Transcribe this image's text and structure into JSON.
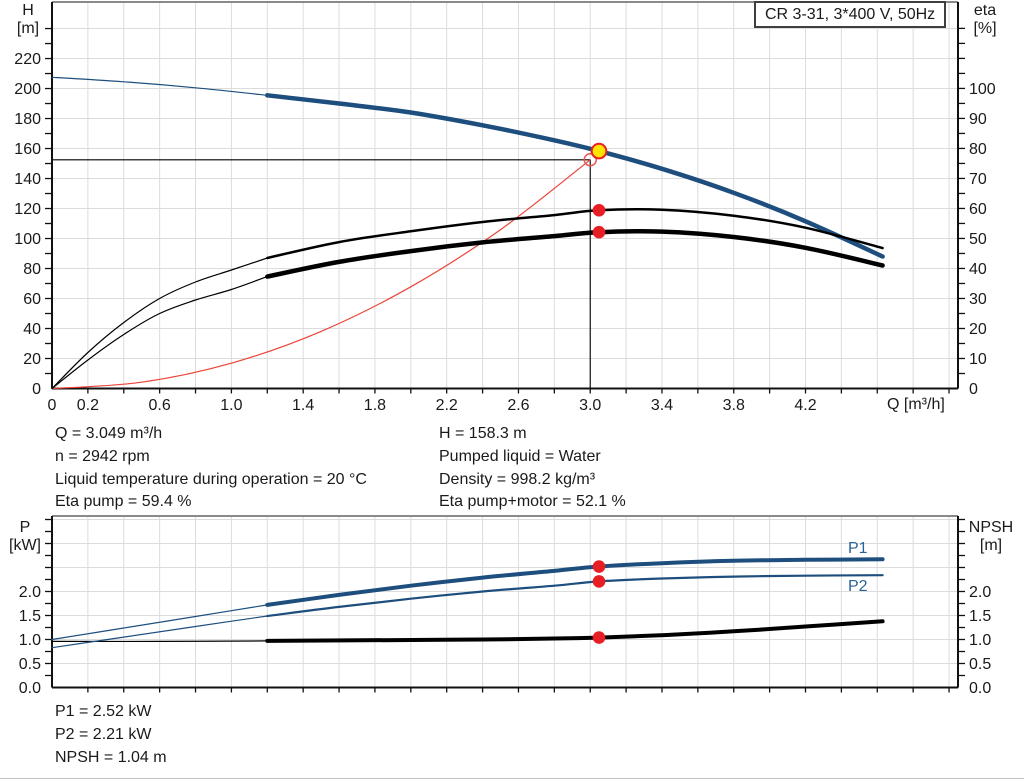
{
  "colors": {
    "grid": "#dcdcdc",
    "border_gray": "#8a8a8a",
    "axis": "#111111",
    "blue": "#1d4e7e",
    "black": "#000000",
    "red": "#ec4338",
    "marker_red": "#e81e25",
    "marker_red_light": "#ef5350",
    "marker_yellow": "#ffe400",
    "label_blue": "#2a6496",
    "text": "#1a1a1a"
  },
  "title_box": "CR 3-31, 3*400 V, 50Hz",
  "info_left": [
    "Q = 3.049 m³/h",
    "n = 2942 rpm",
    "Liquid temperature during operation = 20 °C",
    "Eta pump = 59.4 %"
  ],
  "info_right": [
    "H = 158.3 m",
    "Pumped liquid = Water",
    "Density = 998.2 kg/m³",
    "Eta pump+motor = 52.1 %"
  ],
  "results": [
    "P1 = 2.52 kW",
    "P2 = 2.21 kW",
    "NPSH = 1.04 m"
  ],
  "chart_data": [
    {
      "type": "line",
      "id": "hq-eta-chart",
      "title": "CR 3-31, 3*400 V, 50Hz",
      "xlabel": "Q [m³/h]",
      "ylabel_left_sym": "H",
      "ylabel_left_unit": "[m]",
      "ylabel_right_sym": "eta",
      "ylabel_right_unit": "[%]",
      "xlim": [
        0,
        5.05
      ],
      "ylim_left": [
        0,
        257.7
      ],
      "ylim_right": [
        0,
        128.8
      ],
      "grid": true,
      "grid_step_left": 20,
      "x_tick_step": 0.2,
      "x_tick_max": 5.0,
      "x_labels": [
        [
          0,
          "0"
        ],
        [
          0.2,
          "0.2"
        ],
        [
          0.6,
          "0.6"
        ],
        [
          1.0,
          "1.0"
        ],
        [
          1.4,
          "1.4"
        ],
        [
          1.8,
          "1.8"
        ],
        [
          2.2,
          "2.2"
        ],
        [
          2.6,
          "2.6"
        ],
        [
          3.0,
          "3.0"
        ],
        [
          3.4,
          "3.4"
        ],
        [
          3.8,
          "3.8"
        ],
        [
          4.2,
          "4.2"
        ]
      ],
      "left_tick_step": 10,
      "left_tick_max": 240,
      "y_left_labels": [
        [
          0,
          "0"
        ],
        [
          20,
          "20"
        ],
        [
          40,
          "40"
        ],
        [
          60,
          "60"
        ],
        [
          80,
          "80"
        ],
        [
          100,
          "100"
        ],
        [
          120,
          "120"
        ],
        [
          140,
          "140"
        ],
        [
          160,
          "160"
        ],
        [
          180,
          "180"
        ],
        [
          200,
          "200"
        ],
        [
          220,
          "220"
        ]
      ],
      "right_tick_step": 5,
      "right_tick_max": 120,
      "y_right_labels": [
        [
          0,
          "0"
        ],
        [
          10,
          "10"
        ],
        [
          20,
          "20"
        ],
        [
          30,
          "30"
        ],
        [
          40,
          "40"
        ],
        [
          50,
          "50"
        ],
        [
          60,
          "60"
        ],
        [
          70,
          "70"
        ],
        [
          80,
          "80"
        ],
        [
          90,
          "90"
        ],
        [
          100,
          "100"
        ]
      ],
      "duty_point": {
        "q": 3.0,
        "value": 152.5
      },
      "series": [
        {
          "name": "system-curve",
          "color": "red",
          "width": 1.2,
          "axis": "left",
          "points": [
            [
              0,
              0
            ],
            [
              0.5,
              4.2
            ],
            [
              1.0,
              16.9
            ],
            [
              1.5,
              38.1
            ],
            [
              2.0,
              67.8
            ],
            [
              2.5,
              105.9
            ],
            [
              3.0,
              152.5
            ]
          ]
        },
        {
          "name": "head-curve-thin",
          "color": "blue",
          "width": 1.2,
          "axis": "left",
          "points": [
            [
              0,
              207.5
            ],
            [
              0.4,
              204.5
            ],
            [
              0.8,
              200.5
            ],
            [
              1.2,
              195.5
            ]
          ]
        },
        {
          "name": "head-curve",
          "color": "blue",
          "width": 4.5,
          "axis": "left",
          "points": [
            [
              1.2,
              195.5
            ],
            [
              1.6,
              190
            ],
            [
              2.0,
              184
            ],
            [
              2.4,
              175.5
            ],
            [
              2.8,
              165.5
            ],
            [
              3.049,
              158.3
            ],
            [
              3.4,
              146.5
            ],
            [
              3.8,
              130.5
            ],
            [
              4.2,
              111.5
            ],
            [
              4.63,
              88
            ]
          ]
        },
        {
          "name": "eta-pump-thin",
          "color": "black",
          "width": 1.2,
          "axis": "right",
          "points": [
            [
              0,
              0
            ],
            [
              0.2,
              12
            ],
            [
              0.4,
              22
            ],
            [
              0.6,
              30
            ],
            [
              0.8,
              35.5
            ],
            [
              1.0,
              39.5
            ],
            [
              1.2,
              43.5
            ]
          ]
        },
        {
          "name": "eta-pump",
          "color": "black",
          "width": 2.5,
          "axis": "right",
          "points": [
            [
              1.2,
              43.5
            ],
            [
              1.6,
              48.8
            ],
            [
              2.0,
              52.4
            ],
            [
              2.4,
              55.5
            ],
            [
              2.8,
              57.8
            ],
            [
              3.049,
              59.4
            ],
            [
              3.4,
              59.6
            ],
            [
              3.8,
              57.6
            ],
            [
              4.2,
              53.6
            ],
            [
              4.63,
              46.8
            ]
          ]
        },
        {
          "name": "eta-pump-motor-thin",
          "color": "black",
          "width": 1.2,
          "axis": "right",
          "points": [
            [
              0,
              0
            ],
            [
              0.2,
              9.5
            ],
            [
              0.4,
              18
            ],
            [
              0.6,
              25
            ],
            [
              0.8,
              29.5
            ],
            [
              1.0,
              33
            ],
            [
              1.2,
              37.3
            ]
          ]
        },
        {
          "name": "eta-pump-motor",
          "color": "black",
          "width": 4.5,
          "axis": "right",
          "points": [
            [
              1.2,
              37.3
            ],
            [
              1.6,
              42.2
            ],
            [
              2.0,
              45.8
            ],
            [
              2.4,
              48.7
            ],
            [
              2.8,
              50.8
            ],
            [
              3.049,
              52.1
            ],
            [
              3.4,
              52.3
            ],
            [
              3.8,
              50.5
            ],
            [
              4.2,
              46.9
            ],
            [
              4.63,
              41
            ]
          ]
        }
      ],
      "markers": [
        {
          "name": "duty-point-requested",
          "type": "open",
          "axis": "left",
          "q": 3.0,
          "value": 152.5
        },
        {
          "name": "eta-pump-point",
          "type": "dot",
          "axis": "right",
          "q": 3.049,
          "value": 59.4
        },
        {
          "name": "eta-pump-motor-point",
          "type": "dot",
          "axis": "right",
          "q": 3.049,
          "value": 52.1
        },
        {
          "name": "duty-point-actual",
          "type": "target",
          "axis": "left",
          "q": 3.049,
          "value": 158.3
        }
      ]
    },
    {
      "type": "line",
      "id": "power-npsh-chart",
      "xlabel": "",
      "ylabel_left_sym": "P",
      "ylabel_left_unit": "[kW]",
      "ylabel_right_sym": "NPSH",
      "ylabel_right_unit": "[m]",
      "xlim": [
        0,
        5.05
      ],
      "ylim_left": [
        0,
        3.573
      ],
      "ylim_right": [
        0,
        3.573
      ],
      "grid": true,
      "grid_step_left": 0.5,
      "x_tick_step": 0.2,
      "x_tick_max": 5.0,
      "x_labels": [],
      "left_tick_step": 0.25,
      "left_tick_max": 3.5,
      "y_left_labels": [
        [
          0,
          "0.0"
        ],
        [
          0.5,
          "0.5"
        ],
        [
          1,
          "1.0"
        ],
        [
          1.5,
          "1.5"
        ],
        [
          2,
          "2.0"
        ]
      ],
      "right_tick_step": 0.25,
      "right_tick_max": 3.5,
      "y_right_labels": [
        [
          0,
          "0.0"
        ],
        [
          0.5,
          "0.5"
        ],
        [
          1,
          "1.0"
        ],
        [
          1.5,
          "1.5"
        ],
        [
          2,
          "2.0"
        ]
      ],
      "curve_labels": [
        {
          "text": "P1"
        },
        {
          "text": "P2"
        }
      ],
      "series": [
        {
          "name": "npsh-thin",
          "color": "black",
          "width": 1.2,
          "axis": "left",
          "points": [
            [
              0,
              0.96
            ],
            [
              0.6,
              0.96
            ],
            [
              1.2,
              0.97
            ]
          ]
        },
        {
          "name": "npsh",
          "color": "black",
          "width": 4,
          "axis": "left",
          "points": [
            [
              1.2,
              0.97
            ],
            [
              2.0,
              0.99
            ],
            [
              2.4,
              1.0
            ],
            [
              2.8,
              1.02
            ],
            [
              3.049,
              1.04
            ],
            [
              3.4,
              1.09
            ],
            [
              3.8,
              1.17
            ],
            [
              4.2,
              1.27
            ],
            [
              4.63,
              1.38
            ]
          ]
        },
        {
          "name": "p2-thin",
          "color": "blue",
          "width": 1.2,
          "axis": "left",
          "points": [
            [
              0,
              0.83
            ],
            [
              0.4,
              1.05
            ],
            [
              0.8,
              1.27
            ],
            [
              1.2,
              1.49
            ]
          ]
        },
        {
          "name": "p2",
          "color": "blue",
          "width": 2.2,
          "axis": "left",
          "points": [
            [
              1.2,
              1.49
            ],
            [
              1.6,
              1.68
            ],
            [
              2.0,
              1.85
            ],
            [
              2.4,
              2.0
            ],
            [
              2.8,
              2.12
            ],
            [
              3.049,
              2.21
            ],
            [
              3.4,
              2.27
            ],
            [
              3.8,
              2.31
            ],
            [
              4.2,
              2.33
            ],
            [
              4.63,
              2.34
            ]
          ]
        },
        {
          "name": "p1-thin",
          "color": "blue",
          "width": 1.2,
          "axis": "left",
          "points": [
            [
              0,
              1.0
            ],
            [
              0.4,
              1.24
            ],
            [
              0.8,
              1.48
            ],
            [
              1.2,
              1.72
            ]
          ]
        },
        {
          "name": "p1",
          "color": "blue",
          "width": 4,
          "axis": "left",
          "points": [
            [
              1.2,
              1.72
            ],
            [
              1.6,
              1.93
            ],
            [
              2.0,
              2.12
            ],
            [
              2.4,
              2.29
            ],
            [
              2.8,
              2.43
            ],
            [
              3.049,
              2.52
            ],
            [
              3.4,
              2.59
            ],
            [
              3.8,
              2.64
            ],
            [
              4.2,
              2.66
            ],
            [
              4.63,
              2.67
            ]
          ]
        }
      ],
      "markers": [
        {
          "name": "p1-point",
          "type": "dot",
          "axis": "left",
          "q": 3.049,
          "value": 2.52
        },
        {
          "name": "p2-point",
          "type": "dot",
          "axis": "left",
          "q": 3.049,
          "value": 2.21
        },
        {
          "name": "npsh-point",
          "type": "dot",
          "axis": "left",
          "q": 3.049,
          "value": 1.04
        }
      ]
    }
  ]
}
